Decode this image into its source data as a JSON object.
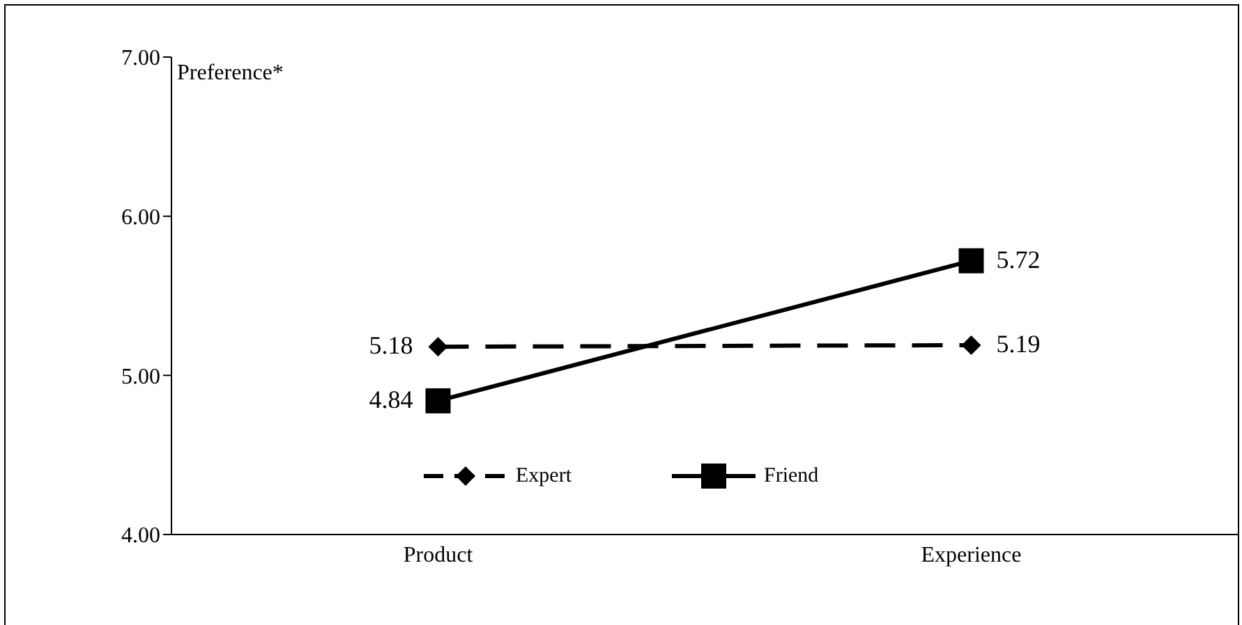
{
  "chart_data": {
    "type": "line",
    "ylabel": "Preference*",
    "categories": [
      "Product",
      "Experience"
    ],
    "series": [
      {
        "name": "Expert",
        "color": "#000000",
        "values": [
          5.18,
          5.19
        ],
        "marker": "diamond",
        "line_style": "dashed"
      },
      {
        "name": "Friend",
        "color": "#000000",
        "values": [
          4.84,
          5.72
        ],
        "marker": "square",
        "line_style": "solid"
      }
    ],
    "ylim": [
      4,
      7
    ],
    "yticks": [
      {
        "value": 4,
        "label": "4.00"
      },
      {
        "value": 5,
        "label": "5.00"
      },
      {
        "value": 6,
        "label": "6.00"
      },
      {
        "value": 7,
        "label": "7.00"
      }
    ],
    "grid": false,
    "legend": "bottom",
    "data_labels": true
  }
}
